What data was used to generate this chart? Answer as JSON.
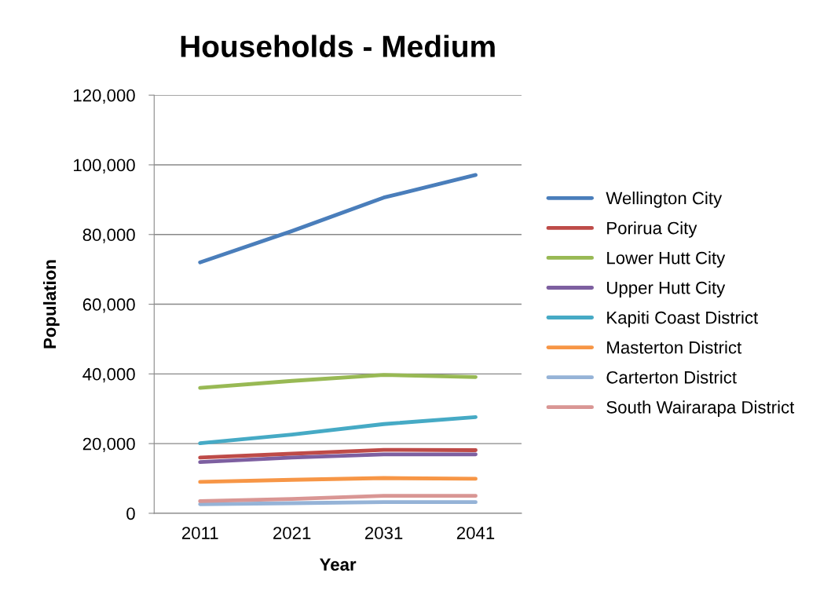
{
  "chart_data": {
    "type": "line",
    "title": "Households - Medium",
    "xlabel": "Year",
    "ylabel": "Population",
    "categories": [
      "2011",
      "2021",
      "2031",
      "2041"
    ],
    "ylim": [
      0,
      120000
    ],
    "yticks": [
      {
        "value": 0,
        "label": "0"
      },
      {
        "value": 20000,
        "label": "20,000"
      },
      {
        "value": 40000,
        "label": "40,000"
      },
      {
        "value": 60000,
        "label": "60,000"
      },
      {
        "value": 80000,
        "label": "80,000"
      },
      {
        "value": 100000,
        "label": "100,000"
      },
      {
        "value": 120000,
        "label": "120,000"
      }
    ],
    "grid": "y",
    "legend": "right",
    "marker": "none",
    "line_style": "solid",
    "series": [
      {
        "name": "Wellington City",
        "color": "#4a7ebb",
        "values": [
          72000,
          81000,
          90600,
          97100
        ]
      },
      {
        "name": "Porirua City",
        "color": "#be4b48",
        "values": [
          16000,
          17100,
          18200,
          18100
        ]
      },
      {
        "name": "Lower Hutt City",
        "color": "#98b954",
        "values": [
          36000,
          38000,
          39700,
          39100
        ]
      },
      {
        "name": "Upper Hutt City",
        "color": "#7d5fa0",
        "values": [
          14700,
          16000,
          16900,
          16900
        ]
      },
      {
        "name": "Kapiti Coast District",
        "color": "#46aac5",
        "values": [
          20100,
          22600,
          25600,
          27600
        ]
      },
      {
        "name": "Masterton District",
        "color": "#f79646",
        "values": [
          9000,
          9600,
          10100,
          9900
        ]
      },
      {
        "name": "Carterton District",
        "color": "#95b3d7",
        "values": [
          2600,
          2900,
          3200,
          3200
        ]
      },
      {
        "name": "South Wairarapa District",
        "color": "#d99694",
        "values": [
          3500,
          4100,
          5000,
          5000
        ]
      }
    ]
  }
}
